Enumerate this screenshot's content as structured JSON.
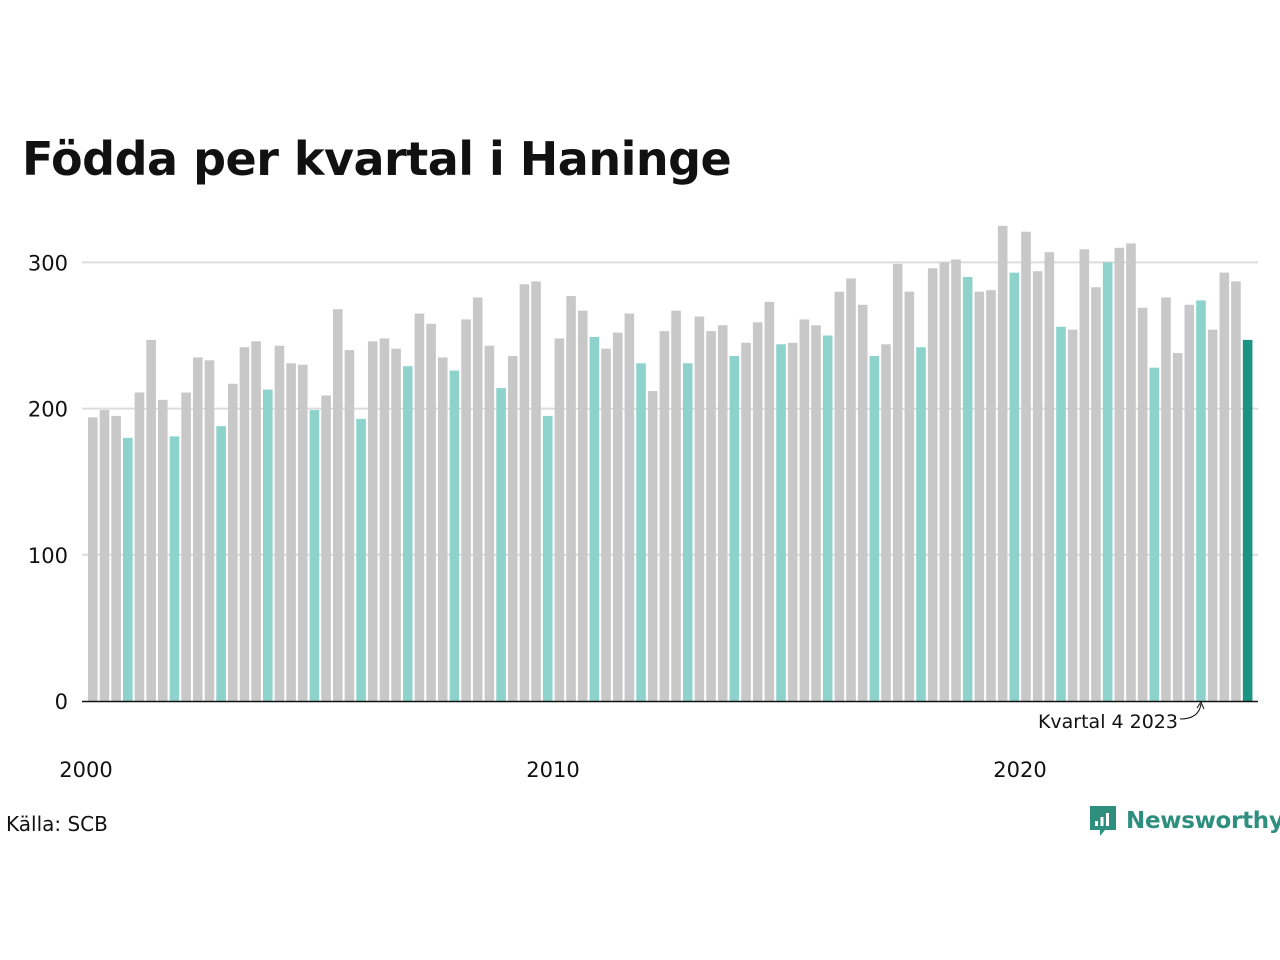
{
  "chart_data": {
    "type": "bar",
    "title": "Födda per kvartal i Haninge",
    "xlabel": "",
    "ylabel": "",
    "ylim": [
      0,
      340
    ],
    "yticks": [
      0,
      100,
      200,
      300
    ],
    "xticks": [
      "2000",
      "2010",
      "2020"
    ],
    "grid": true,
    "annotation": "Kvartal 4 2023",
    "categories": [
      "2000 K1",
      "2000 K2",
      "2000 K3",
      "2000 K4",
      "2001 K1",
      "2001 K2",
      "2001 K3",
      "2001 K4",
      "2002 K1",
      "2002 K2",
      "2002 K3",
      "2002 K4",
      "2003 K1",
      "2003 K2",
      "2003 K3",
      "2003 K4",
      "2004 K1",
      "2004 K2",
      "2004 K3",
      "2004 K4",
      "2005 K1",
      "2005 K2",
      "2005 K3",
      "2005 K4",
      "2006 K1",
      "2006 K2",
      "2006 K3",
      "2006 K4",
      "2007 K1",
      "2007 K2",
      "2007 K3",
      "2007 K4",
      "2008 K1",
      "2008 K2",
      "2008 K3",
      "2008 K4",
      "2009 K1",
      "2009 K2",
      "2009 K3",
      "2009 K4",
      "2010 K1",
      "2010 K2",
      "2010 K3",
      "2010 K4",
      "2011 K1",
      "2011 K2",
      "2011 K3",
      "2011 K4",
      "2012 K1",
      "2012 K2",
      "2012 K3",
      "2012 K4",
      "2013 K1",
      "2013 K2",
      "2013 K3",
      "2013 K4",
      "2014 K1",
      "2014 K2",
      "2014 K3",
      "2014 K4",
      "2015 K1",
      "2015 K2",
      "2015 K3",
      "2015 K4",
      "2016 K1",
      "2016 K2",
      "2016 K3",
      "2016 K4",
      "2017 K1",
      "2017 K2",
      "2017 K3",
      "2017 K4",
      "2018 K1",
      "2018 K2",
      "2018 K3",
      "2018 K4",
      "2019 K1",
      "2019 K2",
      "2019 K3",
      "2019 K4",
      "2020 K1",
      "2020 K2",
      "2020 K3",
      "2020 K4",
      "2021 K1",
      "2021 K2",
      "2021 K3",
      "2021 K4",
      "2022 K1",
      "2022 K2",
      "2022 K3",
      "2022 K4",
      "2023 K1",
      "2023 K2",
      "2023 K3",
      "2023 K4",
      "2024 K1",
      "2024 K2",
      "2024 K3",
      "2024 K4"
    ],
    "values": [
      194,
      199,
      195,
      180,
      211,
      247,
      206,
      181,
      211,
      235,
      233,
      188,
      217,
      242,
      246,
      213,
      243,
      231,
      230,
      199,
      209,
      268,
      240,
      193,
      246,
      248,
      241,
      229,
      265,
      258,
      235,
      226,
      261,
      276,
      243,
      214,
      236,
      285,
      287,
      195,
      248,
      277,
      267,
      249,
      241,
      252,
      265,
      231,
      212,
      253,
      267,
      231,
      263,
      253,
      257,
      236,
      245,
      259,
      273,
      244,
      245,
      261,
      257,
      250,
      280,
      289,
      271,
      236,
      244,
      299,
      280,
      242,
      296,
      300,
      302,
      290,
      280,
      281,
      325,
      293,
      321,
      294,
      307,
      256,
      254,
      309,
      283,
      300,
      310,
      313,
      269,
      228,
      276,
      238,
      271,
      274,
      254,
      293,
      287,
      247
    ],
    "colors": {
      "default": "#c8c8c8",
      "q4": "#8dd3cc",
      "latest": "#1c9484",
      "grid": "#dcdcdc",
      "axis": "#111111"
    }
  },
  "footer": {
    "source": "Källa: SCB",
    "brand": "Newsworthy",
    "brand_color": "#2f8f7f"
  }
}
